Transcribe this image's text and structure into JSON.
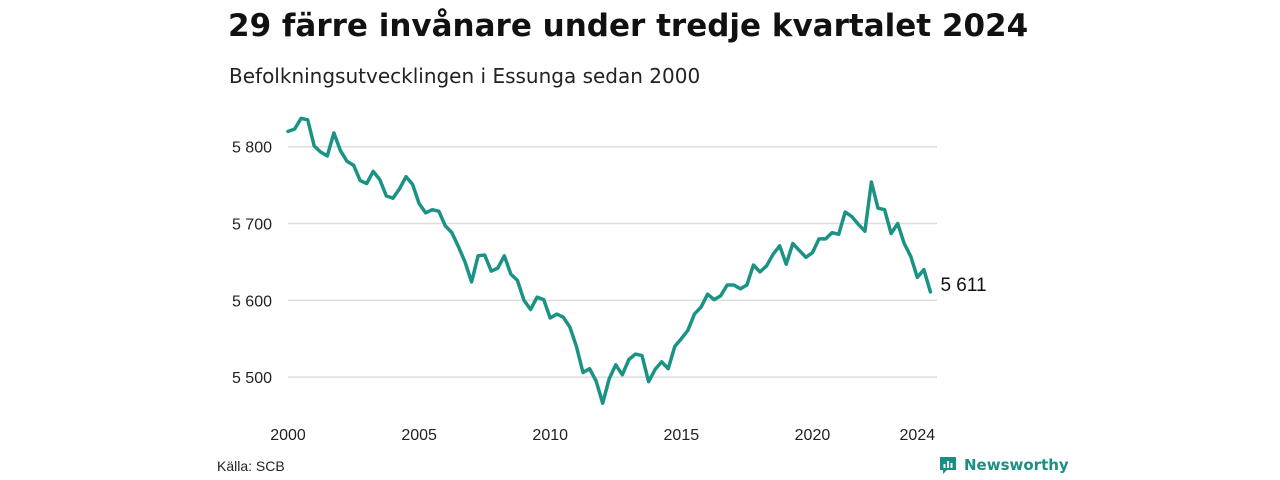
{
  "title": "29 färre invånare under tredje kvartalet 2024",
  "subtitle": "Befolkningsutvecklingen i Essunga sedan 2000",
  "source": "Källa: SCB",
  "brand": {
    "name": "Newsworthy",
    "icon": "newsworthy-logo-icon"
  },
  "colors": {
    "line": "#1a9384",
    "grid": "#dddddd",
    "brand": "#1a8f84"
  },
  "chart_data": {
    "type": "line",
    "title": "29 färre invånare under tredje kvartalet 2024",
    "subtitle": "Befolkningsutvecklingen i Essunga sedan 2000",
    "xlabel": "",
    "ylabel": "",
    "xlim": [
      2000.0,
      2024.75
    ],
    "ylim": [
      5465,
      5840
    ],
    "x_ticks": [
      2000,
      2005,
      2010,
      2015,
      2020,
      2024
    ],
    "x_tick_labels": [
      "2000",
      "2005",
      "2010",
      "2015",
      "2020",
      "2024"
    ],
    "y_ticks": [
      5500,
      5600,
      5700,
      5800
    ],
    "y_tick_labels": [
      "5 500",
      "5 600",
      "5 700",
      "5 800"
    ],
    "grid": true,
    "end_label": "5 611",
    "series": [
      {
        "values": [
          5820,
          5823,
          5837,
          5835,
          5801,
          5793,
          5788,
          5818,
          5795,
          5781,
          5776,
          5756,
          5752,
          5768,
          5757,
          5736,
          5733,
          5745,
          5761,
          5751,
          5726,
          5714,
          5718,
          5716,
          5697,
          5688,
          5670,
          5650,
          5624,
          5658,
          5659,
          5638,
          5642,
          5658,
          5634,
          5626,
          5600,
          5588,
          5604,
          5601,
          5577,
          5582,
          5578,
          5565,
          5540,
          5506,
          5511,
          5495,
          5466,
          5498,
          5516,
          5503,
          5523,
          5530,
          5528,
          5494,
          5510,
          5520,
          5511,
          5540,
          5550,
          5561,
          5582,
          5591,
          5608,
          5601,
          5606,
          5620,
          5620,
          5615,
          5620,
          5646,
          5637,
          5645,
          5660,
          5671,
          5647,
          5674,
          5665,
          5656,
          5662,
          5680,
          5680,
          5688,
          5686,
          5715,
          5709,
          5699,
          5690,
          5754,
          5720,
          5718,
          5687,
          5700,
          5674,
          5657,
          5630,
          5640,
          5611
        ]
      }
    ]
  }
}
